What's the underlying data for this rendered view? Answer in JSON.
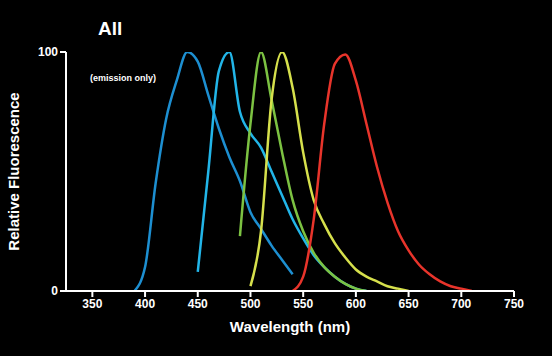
{
  "chart_data": {
    "type": "line",
    "title": "All",
    "subtitle": "(emission only)",
    "x_label": "Wavelength (nm)",
    "y_label": "Relative Fluorescence",
    "x": [
      380,
      390,
      400,
      410,
      420,
      430,
      440,
      450,
      460,
      470,
      480,
      490,
      500,
      510,
      520,
      530,
      540,
      550,
      560,
      570,
      580,
      590,
      600,
      610,
      620,
      630,
      640,
      650,
      660,
      670,
      680,
      690,
      700,
      710
    ],
    "series": [
      {
        "color": "#1d8fd1",
        "values": [
          null,
          0,
          10,
          45,
          72,
          88,
          100,
          96,
          82,
          68,
          56,
          46,
          33,
          26,
          19,
          13,
          7,
          null,
          null,
          null,
          null,
          null,
          null,
          null,
          null,
          null,
          null,
          null,
          null,
          null,
          null,
          null,
          null,
          null
        ]
      },
      {
        "color": "#22b5e8",
        "values": [
          null,
          null,
          null,
          null,
          null,
          null,
          null,
          8,
          50,
          92,
          100,
          75,
          66,
          60,
          50,
          40,
          30,
          22,
          15,
          10,
          6,
          3,
          1,
          0,
          null,
          null,
          null,
          null,
          null,
          null,
          null,
          null,
          null,
          null
        ]
      },
      {
        "color": "#7cc242",
        "values": [
          null,
          null,
          null,
          null,
          null,
          null,
          null,
          null,
          null,
          null,
          null,
          23,
          70,
          100,
          80,
          58,
          38,
          25,
          16,
          10,
          6,
          3,
          1,
          0,
          null,
          null,
          null,
          null,
          null,
          null,
          null,
          null,
          null,
          null
        ]
      },
      {
        "color": "#d6e04c",
        "values": [
          null,
          null,
          null,
          null,
          null,
          null,
          null,
          null,
          null,
          null,
          null,
          null,
          2,
          25,
          80,
          100,
          85,
          58,
          38,
          28,
          20,
          14,
          9,
          6,
          4,
          2,
          1,
          0,
          null,
          null,
          null,
          null,
          null,
          null
        ]
      },
      {
        "color": "#e8342b",
        "values": [
          null,
          null,
          null,
          null,
          null,
          null,
          null,
          null,
          null,
          null,
          null,
          null,
          null,
          null,
          null,
          null,
          0,
          6,
          30,
          70,
          95,
          99,
          88,
          70,
          52,
          37,
          25,
          17,
          11,
          7,
          4,
          2,
          1,
          0
        ]
      }
    ],
    "xlim": [
      325,
      750
    ],
    "xticks": [
      350,
      400,
      450,
      500,
      550,
      600,
      650,
      700,
      750
    ],
    "ylim": [
      0,
      100
    ],
    "yticks": [
      0,
      100
    ]
  }
}
